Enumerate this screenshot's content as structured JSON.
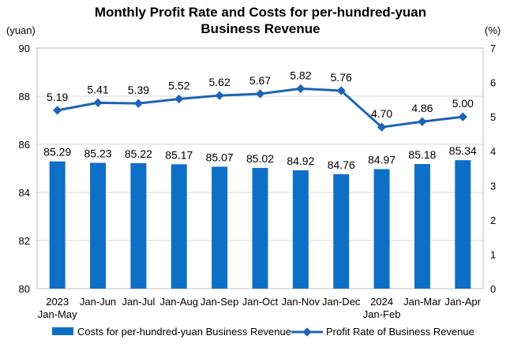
{
  "chart_data": {
    "type": "bar+line",
    "title_lines": [
      "Monthly Profit Rate and Costs for per-hundred-yuan",
      "Business Revenue"
    ],
    "left_unit": "(yuan)",
    "right_unit": "(%)",
    "categories": [
      [
        "2023",
        "Jan-May"
      ],
      [
        "Jan-Jun"
      ],
      [
        "Jan-Jul"
      ],
      [
        "Jan-Aug"
      ],
      [
        "Jan-Sep"
      ],
      [
        "Jan-Oct"
      ],
      [
        "Jan-Nov"
      ],
      [
        "Jan-Dec"
      ],
      [
        "2024",
        "Jan-Feb"
      ],
      [
        "Jan-Mar"
      ],
      [
        "Jan-Apr"
      ]
    ],
    "left_axis": {
      "min": 80,
      "max": 90,
      "step": 2,
      "ticks": [
        "80",
        "82",
        "84",
        "86",
        "88",
        "90"
      ]
    },
    "right_axis": {
      "min": 0,
      "max": 7,
      "step": 1,
      "ticks": [
        "0",
        "1",
        "2",
        "3",
        "4",
        "5",
        "6",
        "7"
      ]
    },
    "bar_series": {
      "name": "Costs for per-hundred-yuan Business Revenue",
      "axis": "left",
      "color": "#0e6fc6",
      "values": [
        85.29,
        85.23,
        85.22,
        85.17,
        85.07,
        85.02,
        84.92,
        84.76,
        84.97,
        85.18,
        85.34
      ],
      "labels": [
        "85.29",
        "85.23",
        "85.22",
        "85.17",
        "85.07",
        "85.02",
        "84.92",
        "84.76",
        "84.97",
        "85.18",
        "85.34"
      ]
    },
    "line_series": {
      "name": "Profit Rate of Business Revenue",
      "axis": "right",
      "color": "#1f63b5",
      "values": [
        5.19,
        5.41,
        5.39,
        5.52,
        5.62,
        5.67,
        5.82,
        5.76,
        4.7,
        4.86,
        5.0
      ],
      "labels": [
        "5.19",
        "5.41",
        "5.39",
        "5.52",
        "5.62",
        "5.67",
        "5.82",
        "5.76",
        "4.70",
        "4.86",
        "5.00"
      ]
    },
    "grid": true,
    "legend_position": "bottom"
  }
}
